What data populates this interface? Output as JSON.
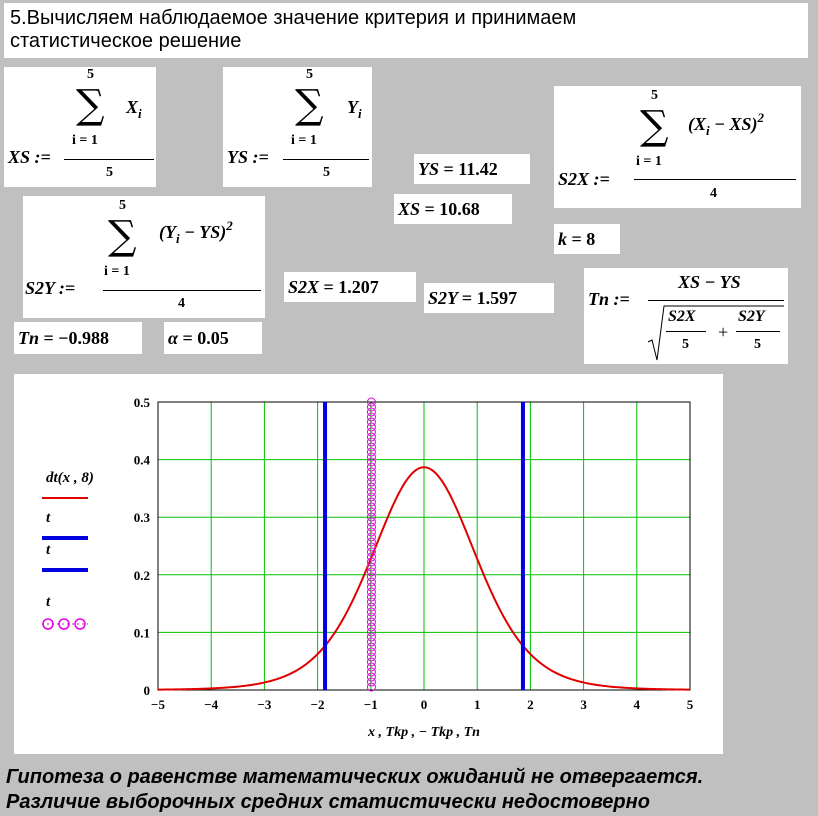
{
  "heading": {
    "line1": "5.Вычисляем наблюдаемое значение критерия и принимаем",
    "line2": "статистическое решение"
  },
  "formulas": {
    "xs_def": {
      "lhs": "XS :=",
      "upper": "5",
      "lower": "i = 1",
      "term": "X",
      "term_sub": "i",
      "denominator": "5"
    },
    "ys_def": {
      "lhs": "YS :=",
      "upper": "5",
      "lower": "i = 1",
      "term": "Y",
      "term_sub": "i",
      "denominator": "5"
    },
    "s2x_def": {
      "lhs": "S2X :=",
      "upper": "5",
      "lower": "i = 1",
      "term_open": "(X",
      "term_sub": "i",
      "term_rest": " − XS)",
      "power": "2",
      "denominator": "4"
    },
    "s2y_def": {
      "lhs": "S2Y :=",
      "upper": "5",
      "lower": "i = 1",
      "term_open": "(Y",
      "term_sub": "i",
      "term_rest": " − YS)",
      "power": "2",
      "denominator": "4"
    },
    "tn_def": {
      "lhs": "Tn :=",
      "numerator": "XS − YS",
      "a": "S2X",
      "a_den": "5",
      "plus": "+",
      "b": "S2Y",
      "b_den": "5"
    }
  },
  "results": {
    "ys": {
      "name": "YS",
      "eq": "=",
      "value": "11.42"
    },
    "xs": {
      "name": "XS",
      "eq": "=",
      "value": "10.68"
    },
    "k": {
      "name": "k",
      "eq": "=",
      "value": "8"
    },
    "s2x": {
      "name": "S2X",
      "eq": "=",
      "value": "1.207"
    },
    "s2y": {
      "name": "S2Y",
      "eq": "=",
      "value": "1.597"
    },
    "tn": {
      "name": "Tn",
      "eq": "=",
      "value": "−0.988"
    },
    "alpha": {
      "name": "α",
      "eq": "=",
      "value": "0.05"
    }
  },
  "legend": [
    {
      "label": "dt(x , 8)",
      "color": "#e00000",
      "style": "line"
    },
    {
      "label": "t",
      "color": "#0000e0",
      "style": "line"
    },
    {
      "label": "t",
      "color": "#0000e0",
      "style": "line"
    },
    {
      "label": "t",
      "color": "#e000e0",
      "style": "circles"
    }
  ],
  "chart_data": {
    "type": "line",
    "xlabel": "x , Tkp , − Tkp , Tn",
    "xlim": [
      -5,
      5
    ],
    "ylim": [
      0,
      0.5
    ],
    "x_ticks": [
      "−5",
      "−4",
      "−3",
      "−2",
      "−1",
      "0",
      "1",
      "2",
      "3",
      "4",
      "5"
    ],
    "y_ticks": [
      "0",
      "0.1",
      "0.2",
      "0.3",
      "0.4",
      "0.5"
    ],
    "grid": true,
    "grid_color": "#00c000",
    "series": [
      {
        "name": "dt(x , 8)",
        "kind": "t-density",
        "df": 8,
        "color": "#e00000",
        "x": [
          -5,
          -4,
          -3,
          -2.5,
          -2,
          -1.5,
          -1,
          -0.5,
          0,
          0.5,
          1,
          1.5,
          2,
          2.5,
          3,
          4,
          5
        ],
        "y": [
          0.0015,
          0.0051,
          0.0171,
          0.0303,
          0.0616,
          0.1256,
          0.2276,
          0.3364,
          0.3867,
          0.3364,
          0.2276,
          0.1256,
          0.0616,
          0.0303,
          0.0171,
          0.0051,
          0.0015
        ]
      },
      {
        "name": "Tkp",
        "kind": "vline",
        "x": 1.86,
        "color": "#0000e0"
      },
      {
        "name": "−Tkp",
        "kind": "vline",
        "x": -1.86,
        "color": "#0000e0"
      },
      {
        "name": "Tn",
        "kind": "vline-circles",
        "x": -0.988,
        "color": "#e000e0"
      }
    ]
  },
  "conclusion": {
    "line1": "Гипотеза о равенстве математических ожиданий не отвергается.",
    "line2": " Различие выборочных средних статистически недостоверно"
  }
}
